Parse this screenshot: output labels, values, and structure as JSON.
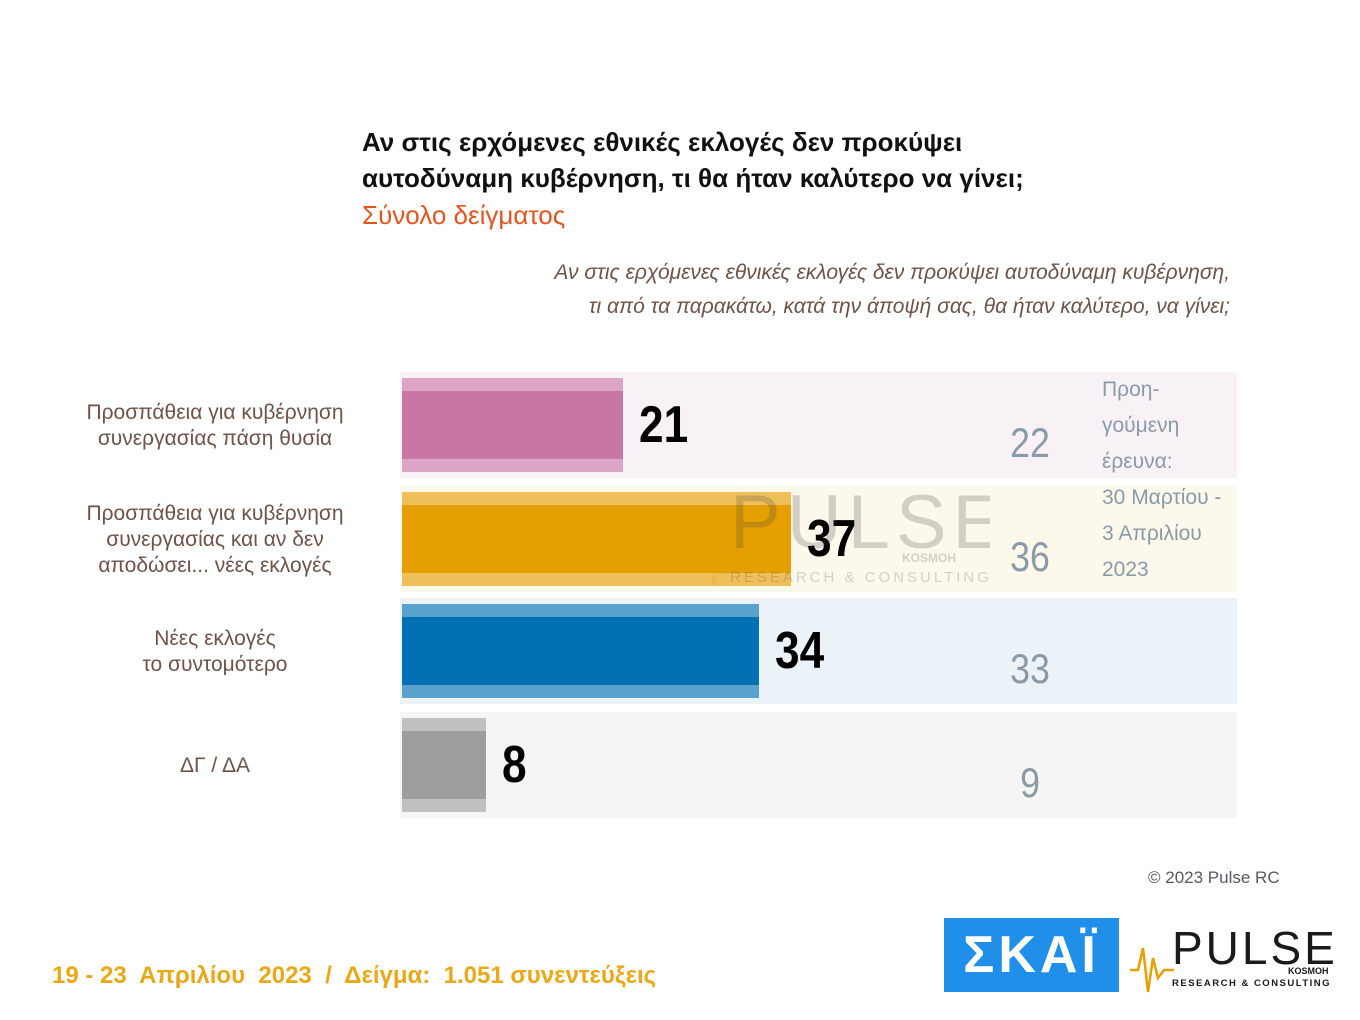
{
  "title_lines": [
    "Αν στις ερχόμενες εθνικές εκλογές δεν προκύψει",
    "αυτοδύναμη κυβέρνηση, τι θα ήταν καλύτερο να γίνει;"
  ],
  "subtitle": "Σύνολο δείγματος",
  "question_lines": [
    "Αν στις ερχόμενες εθνικές εκλογές δεν προκύψει αυτοδύναμη κυβέρνηση,",
    "τι από τα παρακάτω, κατά την άποψή σας, θα ήταν καλύτερο, να γίνει;"
  ],
  "previous_note_lines": [
    "Προη-",
    "γούμενη",
    "έρευνα:",
    "30 Μαρτίου -",
    "3 Απριλίου",
    "2023"
  ],
  "chart_data": {
    "type": "bar",
    "orientation": "horizontal",
    "categories": [
      [
        "Προσπάθεια για κυβέρνηση",
        "συνεργασίας πάση θυσία"
      ],
      [
        "Προσπάθεια για κυβέρνηση",
        "συνεργασίας και αν δεν",
        "αποδώσει... νέες εκλογές"
      ],
      [
        "Νέες εκλογές",
        "το συντομότερο"
      ],
      [
        "ΔΓ / ΔΑ"
      ]
    ],
    "series": [
      {
        "name": "",
        "values": [
          21,
          37,
          34,
          8
        ]
      },
      {
        "name": "Προηγούμενη έρευνα: 30 Μαρτίου - 3 Απριλίου 2023",
        "values": [
          22,
          36,
          33,
          9
        ]
      }
    ],
    "colors": [
      "#c976a6",
      "#e69f00",
      "#0070b3",
      "#9e9e9e"
    ],
    "band_colors": [
      "#f8f2f7",
      "#fdf8ec",
      "#ebf3f9",
      "#f5f5f5"
    ],
    "xlim": [
      0,
      80
    ]
  },
  "watermark": {
    "brand": "PULSE",
    "sub": "RESEARCH & CONSULTING",
    "tag": "KOSMOH"
  },
  "copyright": "© 2023 Pulse RC",
  "footer": "19 - 23  Απριλίου  2023  /  Δείγμα:  1.051 συνεντεύξεις",
  "logos": {
    "skai": "ΣΚΑΪ",
    "pulse": "PULSE",
    "pulse_sub": "RESEARCH & CONSULTING",
    "pulse_tag": "KOSMOH"
  }
}
